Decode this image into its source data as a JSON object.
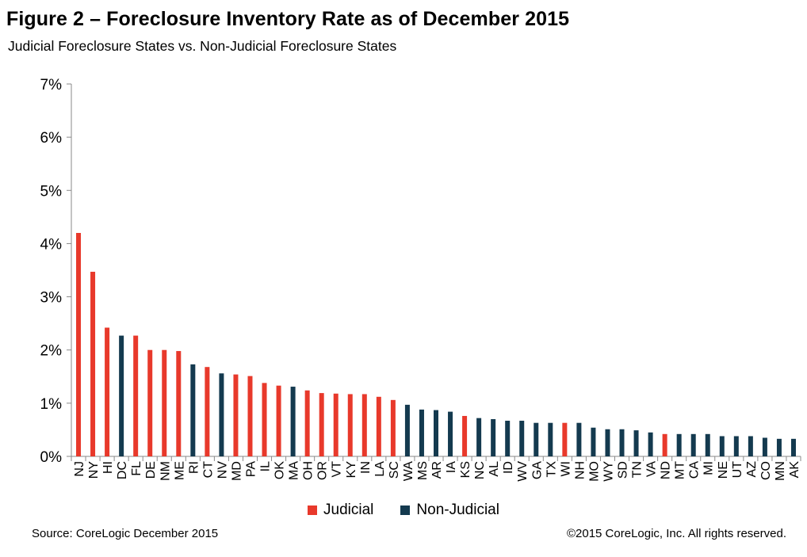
{
  "colors": {
    "judicial": "#e8392b",
    "non_judicial": "#143a4f",
    "axis": "#8a8a8a"
  },
  "chart_data": {
    "type": "bar",
    "title": "Figure 2 – Foreclosure Inventory Rate as of December 2015",
    "subtitle": "Judicial Foreclosure States vs. Non-Judicial Foreclosure States",
    "ylim": [
      0,
      7
    ],
    "yticks": [
      "0%",
      "1%",
      "2%",
      "3%",
      "4%",
      "5%",
      "6%",
      "7%"
    ],
    "grid": false,
    "legend_position": "bottom",
    "categories": [
      "NJ",
      "NY",
      "HI",
      "DC",
      "FL",
      "DE",
      "NM",
      "ME",
      "RI",
      "CT",
      "NV",
      "MD",
      "PA",
      "IL",
      "OK",
      "MA",
      "OH",
      "OR",
      "VT",
      "KY",
      "IN",
      "LA",
      "SC",
      "WA",
      "MS",
      "AR",
      "IA",
      "KS",
      "NC",
      "AL",
      "ID",
      "WV",
      "GA",
      "TX",
      "WI",
      "NH",
      "MO",
      "WY",
      "SD",
      "TN",
      "VA",
      "ND",
      "MT",
      "CA",
      "MI",
      "NE",
      "UT",
      "AZ",
      "CO",
      "MN",
      "AK"
    ],
    "values": [
      4.2,
      3.47,
      2.42,
      2.27,
      2.27,
      2.0,
      2.0,
      1.98,
      1.73,
      1.68,
      1.56,
      1.54,
      1.51,
      1.38,
      1.33,
      1.31,
      1.24,
      1.19,
      1.18,
      1.17,
      1.17,
      1.12,
      1.06,
      0.97,
      0.88,
      0.87,
      0.84,
      0.76,
      0.72,
      0.7,
      0.67,
      0.67,
      0.63,
      0.63,
      0.63,
      0.63,
      0.54,
      0.51,
      0.51,
      0.49,
      0.45,
      0.42,
      0.42,
      0.42,
      0.42,
      0.38,
      0.38,
      0.38,
      0.35,
      0.33,
      0.33
    ],
    "groups": [
      "Judicial",
      "Judicial",
      "Judicial",
      "Non-Judicial",
      "Judicial",
      "Judicial",
      "Judicial",
      "Judicial",
      "Non-Judicial",
      "Judicial",
      "Non-Judicial",
      "Judicial",
      "Judicial",
      "Judicial",
      "Judicial",
      "Non-Judicial",
      "Judicial",
      "Judicial",
      "Judicial",
      "Judicial",
      "Judicial",
      "Judicial",
      "Judicial",
      "Non-Judicial",
      "Non-Judicial",
      "Non-Judicial",
      "Non-Judicial",
      "Judicial",
      "Non-Judicial",
      "Non-Judicial",
      "Non-Judicial",
      "Non-Judicial",
      "Non-Judicial",
      "Non-Judicial",
      "Judicial",
      "Non-Judicial",
      "Non-Judicial",
      "Non-Judicial",
      "Non-Judicial",
      "Non-Judicial",
      "Non-Judicial",
      "Judicial",
      "Non-Judicial",
      "Non-Judicial",
      "Non-Judicial",
      "Non-Judicial",
      "Non-Judicial",
      "Non-Judicial",
      "Non-Judicial",
      "Non-Judicial",
      "Non-Judicial"
    ],
    "legend": [
      "Judicial",
      "Non-Judicial"
    ]
  },
  "footer": {
    "source": "Source: CoreLogic  December 2015",
    "copyright": "©2015 CoreLogic, Inc. All rights reserved."
  }
}
